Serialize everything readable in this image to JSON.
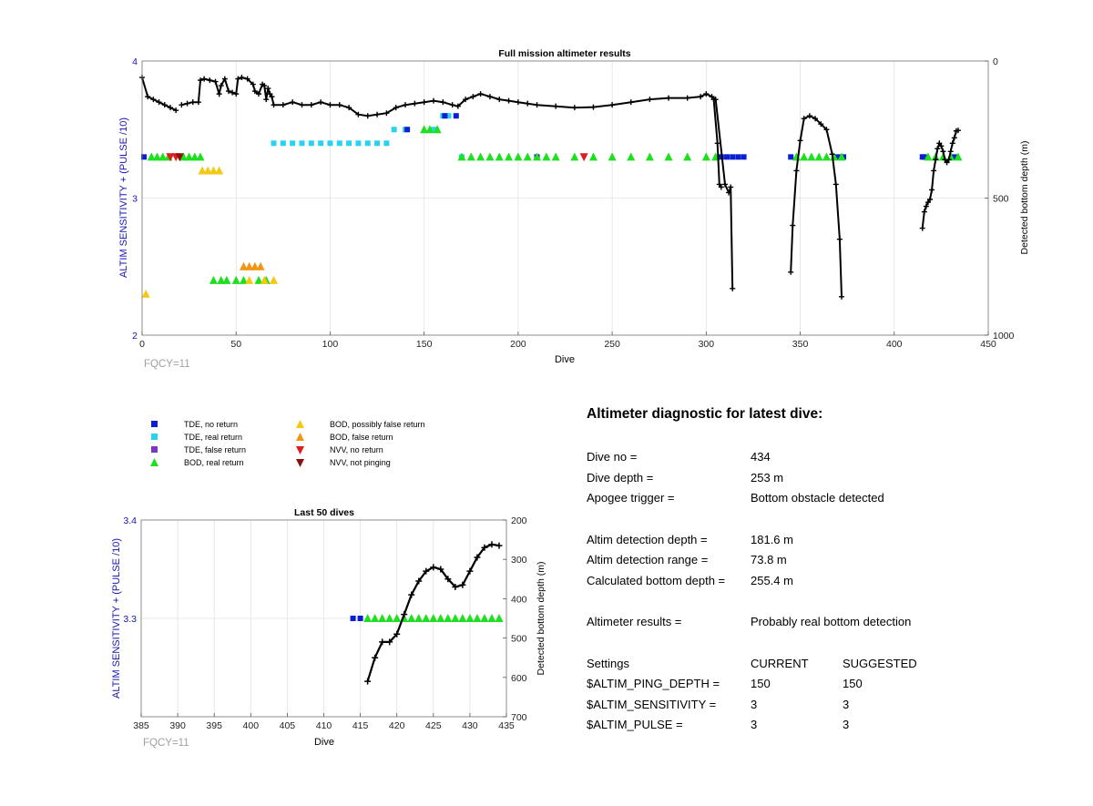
{
  "colors": {
    "tde_no_return": "#0a1ed2",
    "tde_real_return": "#28d2f0",
    "tde_false_return": "#7c35c8",
    "bod_real_return": "#1ee01e",
    "bod_possibly_false": "#f5c814",
    "bod_false_return": "#f09614",
    "nvv_no_return": "#dc1e1e",
    "nvv_not_pinging": "#8c1010",
    "left_axis": "#1414b4",
    "fqcy": "#a0a0a0"
  },
  "legend": {
    "items": [
      {
        "key": "tde_no",
        "symbol": "square",
        "color": "#0a1ed2",
        "label": "TDE, no return"
      },
      {
        "key": "tde_real",
        "symbol": "square",
        "color": "#28d2f0",
        "label": "TDE, real return"
      },
      {
        "key": "tde_false",
        "symbol": "square",
        "color": "#7c35c8",
        "label": "TDE, false return"
      },
      {
        "key": "bod_real",
        "symbol": "triangle-up",
        "color": "#1ee01e",
        "label": "BOD, real return"
      },
      {
        "key": "bod_possibly",
        "symbol": "triangle-up",
        "color": "#f5c814",
        "label": "BOD, possibly false return"
      },
      {
        "key": "bod_false",
        "symbol": "triangle-up",
        "color": "#f09614",
        "label": "BOD, false return"
      },
      {
        "key": "nvv_no",
        "symbol": "triangle-down",
        "color": "#dc1e1e",
        "label": "NVV, no return"
      },
      {
        "key": "nvv_not",
        "symbol": "triangle-down",
        "color": "#8c1010",
        "label": "NVV, not pinging"
      }
    ]
  },
  "diagnostic": {
    "title": "Altimeter diagnostic for latest dive:",
    "dive_no": {
      "label": "Dive no =",
      "value": "434"
    },
    "dive_depth": {
      "label": "Dive depth =",
      "value": "253 m"
    },
    "apogee": {
      "label": "Apogee trigger =",
      "value": "Bottom obstacle detected"
    },
    "altim_depth": {
      "label": "Altim detection depth =",
      "value": "181.6 m"
    },
    "altim_range": {
      "label": "Altim detection range =",
      "value": "73.8 m"
    },
    "calc_depth": {
      "label": "Calculated bottom depth =",
      "value": "255.4 m"
    },
    "results": {
      "label": "Altimeter results =",
      "value": "Probably real bottom detection"
    },
    "settings_header": {
      "label": "Settings",
      "current": "CURRENT",
      "suggested": "SUGGESTED"
    },
    "ping_depth": {
      "label": "$ALTIM_PING_DEPTH =",
      "current": "150",
      "suggested": "150"
    },
    "sensitivity": {
      "label": "$ALTIM_SENSITIVITY =",
      "current": "3",
      "suggested": "3"
    },
    "pulse": {
      "label": "$ALTIM_PULSE =",
      "current": "3",
      "suggested": "3"
    }
  },
  "chart_data": [
    {
      "type": "scatter",
      "title": "Full mission altimeter results",
      "xlabel": "Dive",
      "ylabel": "ALTIM SENSITIVITY + (PULSE /10)",
      "y2label": "Detected bottom depth (m)",
      "xlim": [
        0,
        450
      ],
      "ylim": [
        2,
        4
      ],
      "y2lim": [
        0,
        1000
      ],
      "y2_reversed": true,
      "xticks": [
        "0",
        "50",
        "100",
        "150",
        "200",
        "250",
        "300",
        "350",
        "400",
        "450"
      ],
      "yticks": [
        "2",
        "3",
        "4"
      ],
      "y2ticks": [
        "0",
        "500",
        "1000"
      ],
      "grid": true,
      "footnote": "FQCY=11",
      "bottom_depth_segments": [
        [
          [
            0,
            60
          ],
          [
            3,
            130
          ],
          [
            6,
            140
          ],
          [
            9,
            150
          ],
          [
            12,
            160
          ],
          [
            15,
            170
          ],
          [
            18,
            180
          ]
        ],
        [
          [
            21,
            160
          ],
          [
            24,
            155
          ],
          [
            27,
            150
          ],
          [
            30,
            150
          ],
          [
            31,
            70
          ],
          [
            33,
            65
          ],
          [
            36,
            70
          ],
          [
            39,
            75
          ],
          [
            41,
            120
          ],
          [
            42,
            90
          ],
          [
            44,
            65
          ],
          [
            46,
            110
          ],
          [
            48,
            115
          ],
          [
            50,
            120
          ],
          [
            51,
            65
          ],
          [
            53,
            60
          ],
          [
            56,
            65
          ],
          [
            59,
            85
          ],
          [
            60,
            110
          ],
          [
            62,
            120
          ],
          [
            64,
            85
          ],
          [
            65,
            90
          ],
          [
            66,
            140
          ],
          [
            67,
            100
          ],
          [
            68,
            120
          ],
          [
            69,
            130
          ],
          [
            70,
            160
          ],
          [
            75,
            160
          ],
          [
            80,
            150
          ],
          [
            85,
            160
          ],
          [
            90,
            160
          ],
          [
            95,
            150
          ],
          [
            100,
            160
          ],
          [
            105,
            160
          ],
          [
            110,
            170
          ],
          [
            115,
            195
          ],
          [
            120,
            200
          ],
          [
            125,
            195
          ],
          [
            130,
            190
          ],
          [
            135,
            170
          ],
          [
            140,
            160
          ],
          [
            145,
            155
          ],
          [
            150,
            150
          ],
          [
            155,
            145
          ],
          [
            160,
            150
          ],
          [
            165,
            160
          ],
          [
            168,
            165
          ],
          [
            172,
            140
          ],
          [
            176,
            130
          ],
          [
            180,
            120
          ],
          [
            185,
            130
          ],
          [
            190,
            140
          ],
          [
            195,
            145
          ],
          [
            200,
            150
          ],
          [
            205,
            155
          ],
          [
            210,
            160
          ],
          [
            220,
            165
          ],
          [
            230,
            170
          ],
          [
            240,
            168
          ],
          [
            250,
            160
          ],
          [
            260,
            150
          ],
          [
            270,
            140
          ],
          [
            280,
            135
          ],
          [
            290,
            135
          ],
          [
            297,
            130
          ],
          [
            300,
            120
          ],
          [
            303,
            130
          ],
          [
            305,
            140
          ],
          [
            310,
            450
          ],
          [
            312,
            480
          ],
          [
            313,
            460
          ],
          [
            314,
            830
          ]
        ],
        [
          [
            304,
            140
          ],
          [
            306,
            300
          ],
          [
            307,
            450
          ],
          [
            308,
            460
          ]
        ],
        [
          [
            345,
            770
          ],
          [
            346,
            600
          ],
          [
            348,
            400
          ],
          [
            350,
            290
          ],
          [
            352,
            210
          ],
          [
            355,
            200
          ],
          [
            358,
            210
          ],
          [
            361,
            230
          ],
          [
            364,
            250
          ],
          [
            367,
            340
          ],
          [
            369,
            450
          ],
          [
            371,
            650
          ],
          [
            372,
            860
          ]
        ],
        [
          [
            415,
            610
          ],
          [
            416,
            550
          ],
          [
            417,
            530
          ],
          [
            418,
            515
          ],
          [
            419,
            505
          ],
          [
            420,
            470
          ],
          [
            421,
            400
          ],
          [
            422,
            360
          ],
          [
            423,
            320
          ],
          [
            424,
            300
          ],
          [
            425,
            310
          ],
          [
            426,
            330
          ],
          [
            427,
            360
          ],
          [
            428,
            370
          ],
          [
            429,
            360
          ],
          [
            430,
            330
          ],
          [
            431,
            300
          ],
          [
            432,
            280
          ],
          [
            433,
            255
          ],
          [
            434,
            253
          ]
        ]
      ],
      "tde_no_return_x": [
        1,
        141,
        161,
        167,
        210,
        308,
        311,
        314,
        317,
        320,
        345,
        370,
        373,
        415,
        416,
        432
      ],
      "tde_real_return_x": [
        70,
        75,
        80,
        85,
        90,
        95,
        100,
        105,
        110,
        115,
        120,
        125,
        130,
        134,
        140,
        155,
        160,
        163,
        170
      ],
      "tde_false_return_x": [],
      "bod_real_return_x": [
        5,
        8,
        11,
        14,
        22,
        25,
        28,
        31,
        38,
        42,
        45,
        50,
        54,
        62,
        66,
        150,
        153,
        157,
        170,
        175,
        180,
        185,
        190,
        195,
        200,
        205,
        210,
        215,
        220,
        230,
        240,
        250,
        260,
        270,
        280,
        290,
        300,
        305,
        348,
        352,
        356,
        360,
        364,
        368,
        372,
        418,
        422,
        426,
        430,
        434
      ],
      "bod_possibly_false_x": [
        2,
        32,
        35,
        38,
        41,
        57,
        65,
        70
      ],
      "bod_false_return_x": [
        54,
        57,
        60,
        63
      ],
      "nvv_no_return_x": [
        15,
        18,
        235
      ],
      "nvv_not_pinging_x": [
        20
      ]
    },
    {
      "type": "scatter",
      "title": "Last 50 dives",
      "xlabel": "Dive",
      "ylabel": "ALTIM SENSITIVITY + (PULSE /10)",
      "y2label": "Detected bottom depth (m)",
      "xlim": [
        385,
        435
      ],
      "ylim": [
        3.2,
        3.4
      ],
      "y2lim": [
        200,
        700
      ],
      "y2_reversed": true,
      "xticks": [
        "385",
        "390",
        "395",
        "400",
        "405",
        "410",
        "415",
        "420",
        "425",
        "430",
        "435"
      ],
      "yticks": [
        "3.3",
        "3.4"
      ],
      "y2ticks": [
        "200",
        "300",
        "400",
        "500",
        "600",
        "700"
      ],
      "grid": true,
      "footnote": "FQCY=11",
      "bottom_depth": [
        [
          416,
          610
        ],
        [
          417,
          550
        ],
        [
          418,
          510
        ],
        [
          419,
          510
        ],
        [
          420,
          490
        ],
        [
          421,
          440
        ],
        [
          422,
          390
        ],
        [
          423,
          355
        ],
        [
          424,
          330
        ],
        [
          425,
          320
        ],
        [
          426,
          325
        ],
        [
          427,
          350
        ],
        [
          428,
          370
        ],
        [
          429,
          365
        ],
        [
          430,
          330
        ],
        [
          431,
          295
        ],
        [
          432,
          270
        ],
        [
          433,
          262
        ],
        [
          434,
          265
        ]
      ],
      "tde_no_return_x": [
        414,
        415
      ],
      "bod_real_return_x": [
        416,
        417,
        418,
        419,
        420,
        421,
        422,
        423,
        424,
        425,
        426,
        427,
        428,
        429,
        430,
        431,
        432,
        433,
        434
      ],
      "series_level": 3.3
    }
  ]
}
